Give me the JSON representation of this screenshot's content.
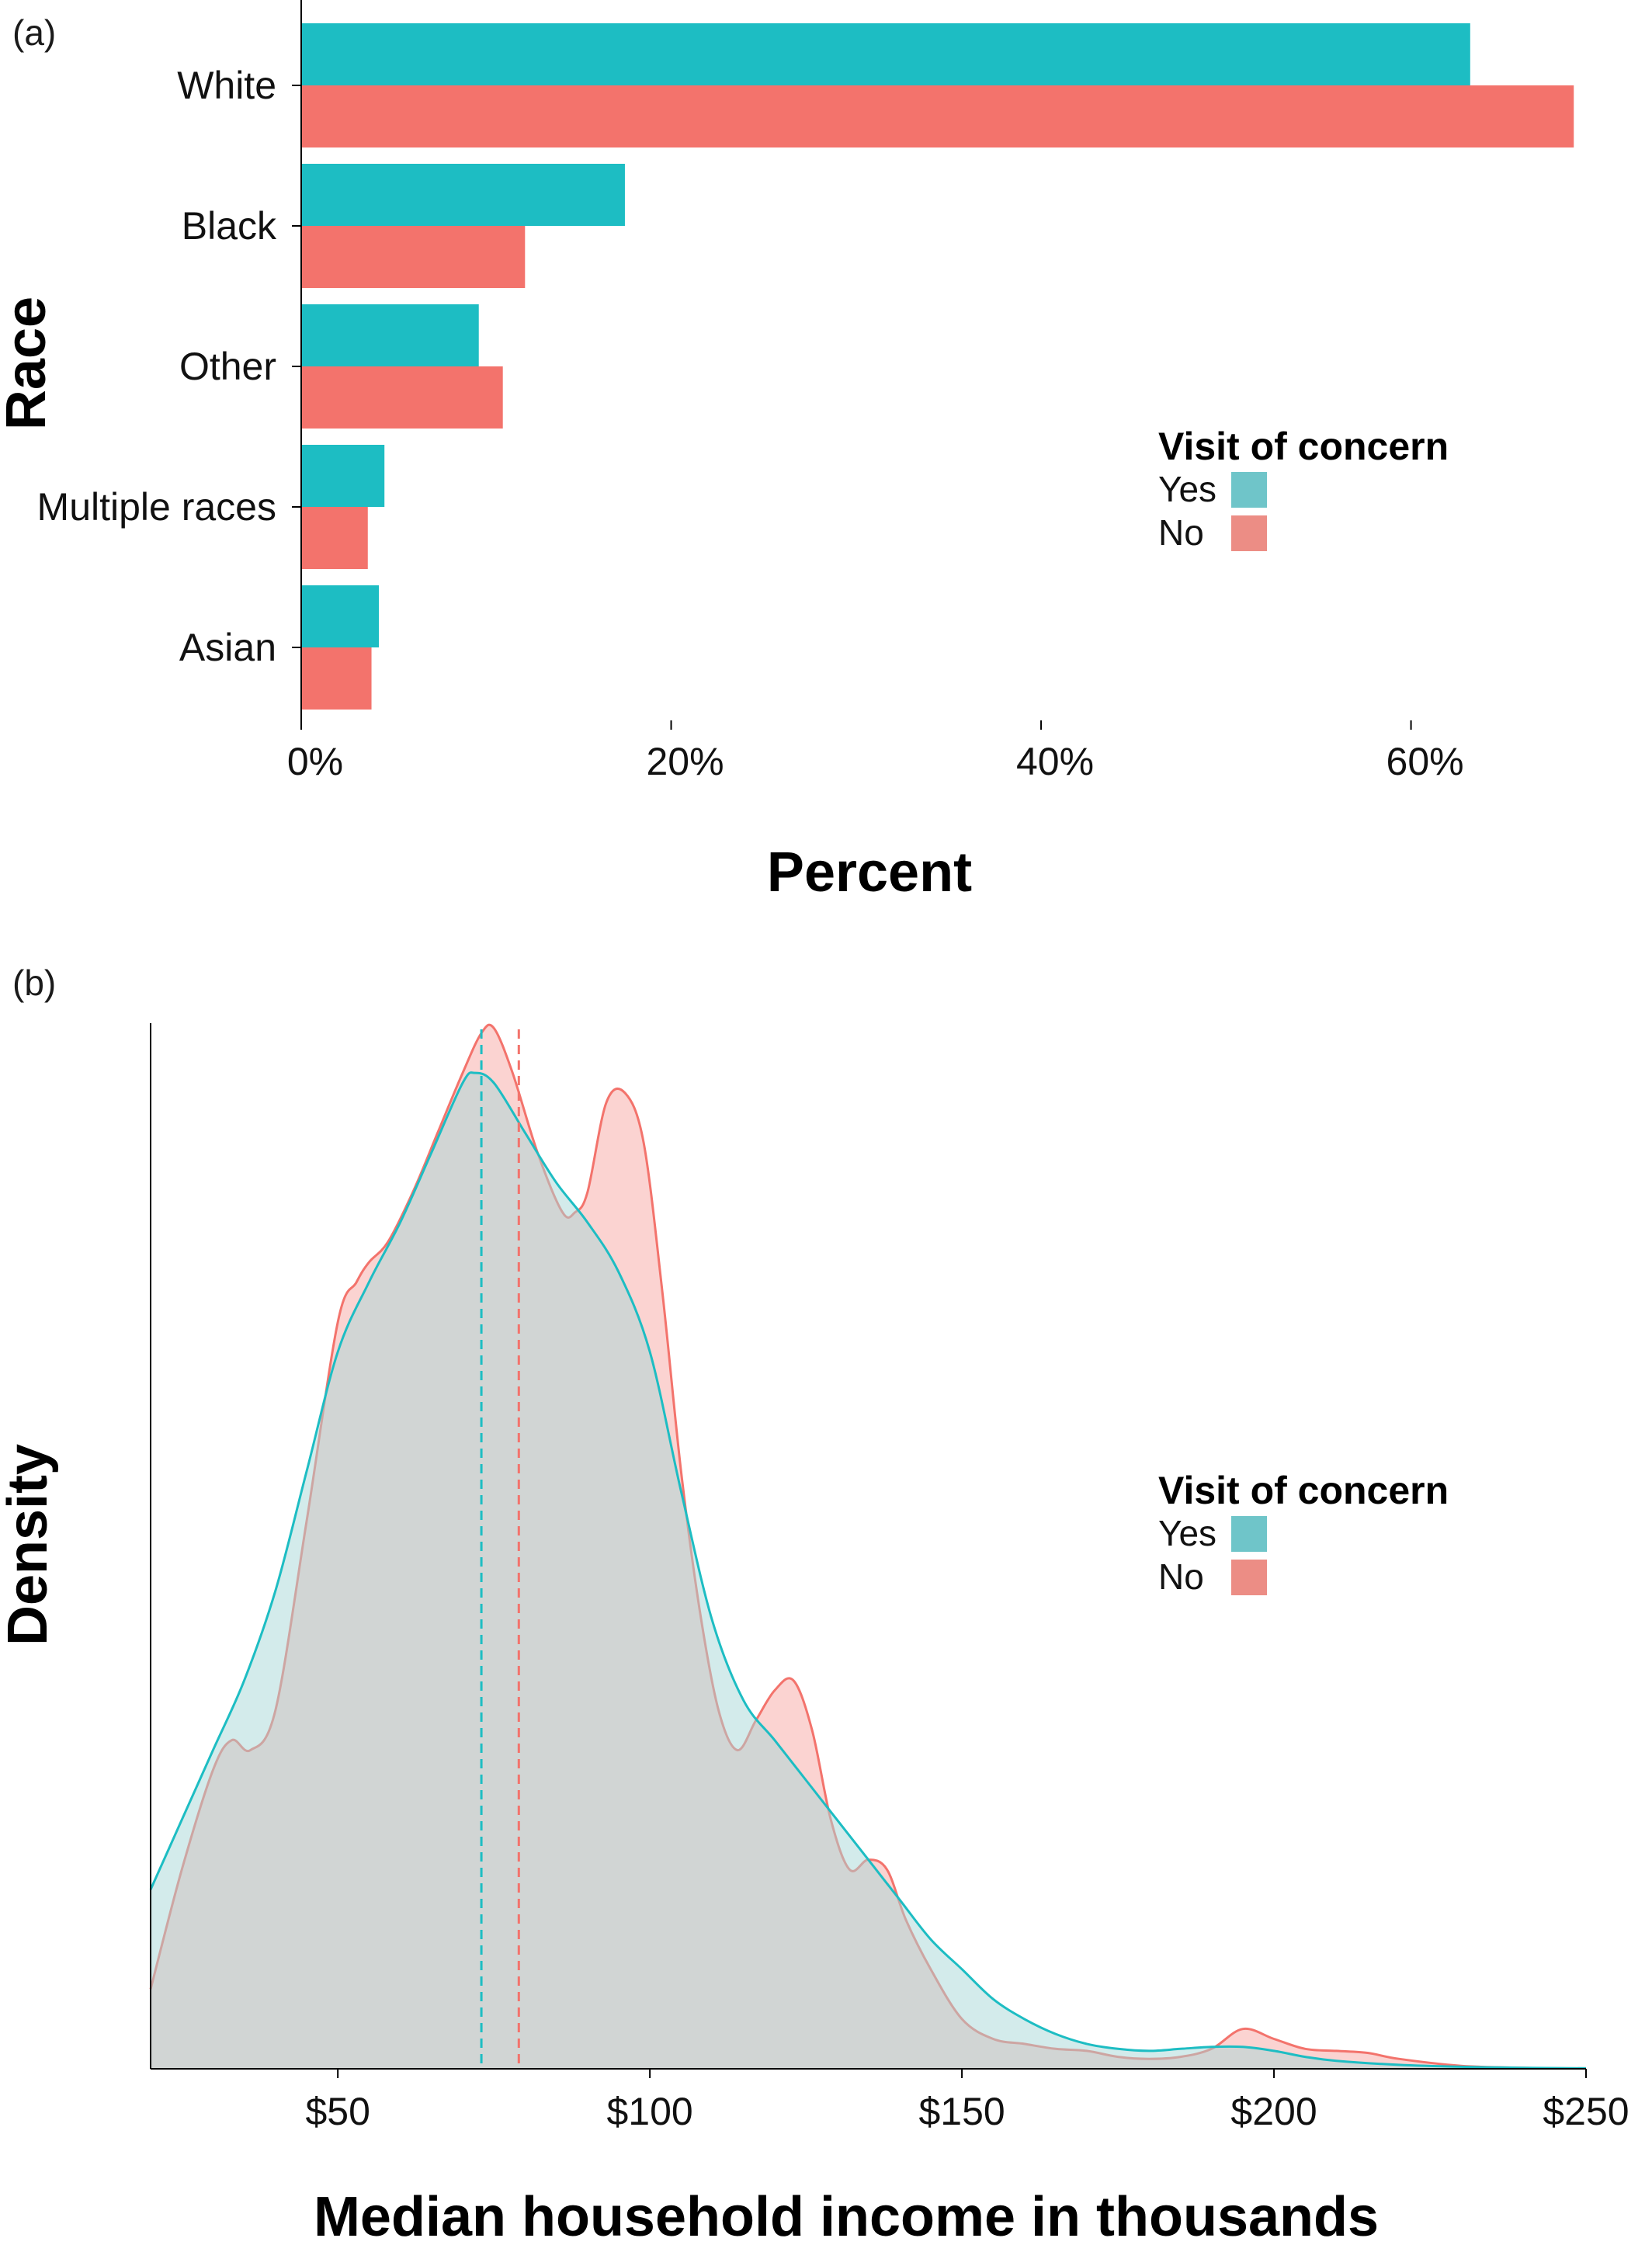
{
  "chart_data": [
    {
      "panel_label": "(a)",
      "type": "bar",
      "orientation": "horizontal",
      "categories": [
        "White",
        "Black",
        "Other",
        "Multiple races",
        "Asian"
      ],
      "series": [
        {
          "name": "Yes",
          "color": "#1dbdc3",
          "values": [
            63.2,
            17.5,
            9.6,
            4.5,
            4.2
          ]
        },
        {
          "name": "No",
          "color": "#f3736c",
          "values": [
            68.8,
            12.1,
            10.9,
            3.6,
            3.8
          ]
        }
      ],
      "xlabel": "Percent",
      "ylabel": "Race",
      "xlim": [
        0,
        69
      ],
      "xticks": [
        0,
        20,
        40,
        60
      ],
      "xtick_labels": [
        "0%",
        "20%",
        "40%",
        "60%"
      ],
      "grid": false,
      "legend": {
        "title": "Visit of concern",
        "placement": "right",
        "entries": [
          "Yes",
          "No"
        ]
      }
    },
    {
      "panel_label": "(b)",
      "type": "area",
      "subtype": "density",
      "xlabel": "Median household income in thousands",
      "ylabel": "Density",
      "xlim": [
        20,
        250
      ],
      "xticks": [
        50,
        100,
        150,
        200,
        250
      ],
      "xtick_labels": [
        "$50",
        "$100",
        "$150",
        "$200",
        "$250"
      ],
      "y_ticks_shown": false,
      "grid": false,
      "series": [
        {
          "name": "No",
          "color": "#f3736c",
          "fill_color": "#f8a7a3",
          "mean": 79,
          "x": [
            20,
            25,
            30,
            33,
            36,
            40,
            45,
            50,
            53,
            55,
            58,
            62,
            66,
            70,
            73,
            75,
            78,
            82,
            86,
            88,
            90,
            93,
            96,
            99,
            102,
            105,
            108,
            111,
            114,
            117,
            120,
            123,
            126,
            129,
            132,
            135,
            138,
            141,
            145,
            150,
            155,
            160,
            165,
            170,
            175,
            180,
            185,
            190,
            195,
            200,
            205,
            210,
            215,
            220,
            230,
            240,
            250
          ],
          "y": [
            0.08,
            0.2,
            0.3,
            0.33,
            0.32,
            0.36,
            0.55,
            0.75,
            0.79,
            0.81,
            0.83,
            0.88,
            0.94,
            1.0,
            1.04,
            1.045,
            1.0,
            0.92,
            0.86,
            0.86,
            0.88,
            0.97,
            0.98,
            0.93,
            0.78,
            0.6,
            0.46,
            0.36,
            0.32,
            0.35,
            0.38,
            0.39,
            0.34,
            0.25,
            0.2,
            0.21,
            0.2,
            0.15,
            0.1,
            0.05,
            0.03,
            0.025,
            0.02,
            0.018,
            0.012,
            0.01,
            0.012,
            0.02,
            0.04,
            0.03,
            0.02,
            0.018,
            0.016,
            0.01,
            0.003,
            0.001,
            0.0005
          ]
        },
        {
          "name": "Yes",
          "color": "#1dbdc3",
          "fill_color": "#a8d8d8",
          "mean": 73,
          "x": [
            20,
            25,
            30,
            35,
            40,
            45,
            50,
            55,
            60,
            65,
            70,
            72,
            75,
            80,
            85,
            90,
            95,
            100,
            105,
            110,
            115,
            120,
            125,
            130,
            135,
            140,
            145,
            150,
            155,
            160,
            165,
            170,
            175,
            180,
            185,
            190,
            195,
            200,
            205,
            210,
            220,
            230,
            240,
            250
          ],
          "y": [
            0.18,
            0.25,
            0.32,
            0.39,
            0.48,
            0.6,
            0.72,
            0.79,
            0.85,
            0.92,
            0.99,
            1.0,
            0.99,
            0.94,
            0.89,
            0.85,
            0.8,
            0.72,
            0.58,
            0.45,
            0.37,
            0.33,
            0.29,
            0.25,
            0.21,
            0.17,
            0.13,
            0.1,
            0.07,
            0.05,
            0.035,
            0.025,
            0.02,
            0.018,
            0.02,
            0.022,
            0.022,
            0.018,
            0.012,
            0.008,
            0.004,
            0.002,
            0.001,
            0.0005
          ]
        }
      ],
      "legend": {
        "title": "Visit of concern",
        "placement": "right",
        "entries": [
          "Yes",
          "No"
        ]
      }
    }
  ]
}
